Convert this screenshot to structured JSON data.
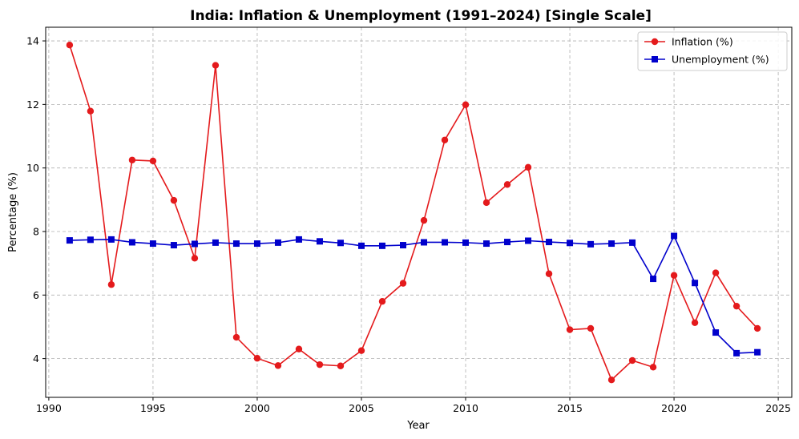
{
  "chart_data": {
    "type": "line",
    "title": "India: Inflation & Unemployment (1991–2024) [Single Scale]",
    "xlabel": "Year",
    "ylabel": "Percentage (%)",
    "xlim": [
      1989.85,
      2025.65
    ],
    "ylim": [
      2.78,
      14.43
    ],
    "x_ticks": [
      1990,
      1995,
      2000,
      2005,
      2010,
      2015,
      2020,
      2025
    ],
    "x_tick_labels": [
      "1990",
      "1995",
      "2000",
      "2005",
      "2010",
      "2015",
      "2020",
      "2025"
    ],
    "y_ticks": [
      4,
      6,
      8,
      10,
      12,
      14
    ],
    "y_tick_labels": [
      "4",
      "6",
      "8",
      "10",
      "12",
      "14"
    ],
    "grid": true,
    "legend_position": "top-right",
    "x": [
      1991,
      1992,
      1993,
      1994,
      1995,
      1996,
      1997,
      1998,
      1999,
      2000,
      2001,
      2002,
      2003,
      2004,
      2005,
      2006,
      2007,
      2008,
      2009,
      2010,
      2011,
      2012,
      2013,
      2014,
      2015,
      2016,
      2017,
      2018,
      2019,
      2020,
      2021,
      2022,
      2023,
      2024
    ],
    "series": [
      {
        "name": "Inflation (%)",
        "color": "#e41a1c",
        "marker": "circle",
        "values": [
          13.87,
          11.79,
          6.33,
          10.25,
          10.22,
          8.98,
          7.16,
          13.23,
          4.67,
          4.01,
          3.78,
          4.3,
          3.81,
          3.77,
          4.25,
          5.8,
          6.37,
          8.35,
          10.88,
          11.99,
          8.91,
          9.48,
          10.02,
          6.67,
          4.91,
          4.95,
          3.33,
          3.94,
          3.73,
          6.62,
          5.13,
          6.7,
          5.65,
          4.95
        ]
      },
      {
        "name": "Unemployment (%)",
        "color": "#0000cc",
        "marker": "square",
        "values": [
          7.72,
          7.74,
          7.75,
          7.66,
          7.62,
          7.57,
          7.61,
          7.65,
          7.62,
          7.62,
          7.65,
          7.75,
          7.69,
          7.64,
          7.55,
          7.55,
          7.57,
          7.66,
          7.66,
          7.65,
          7.62,
          7.67,
          7.71,
          7.67,
          7.64,
          7.6,
          7.62,
          7.65,
          6.51,
          7.86,
          6.38,
          4.82,
          4.17,
          4.2
        ]
      }
    ]
  }
}
